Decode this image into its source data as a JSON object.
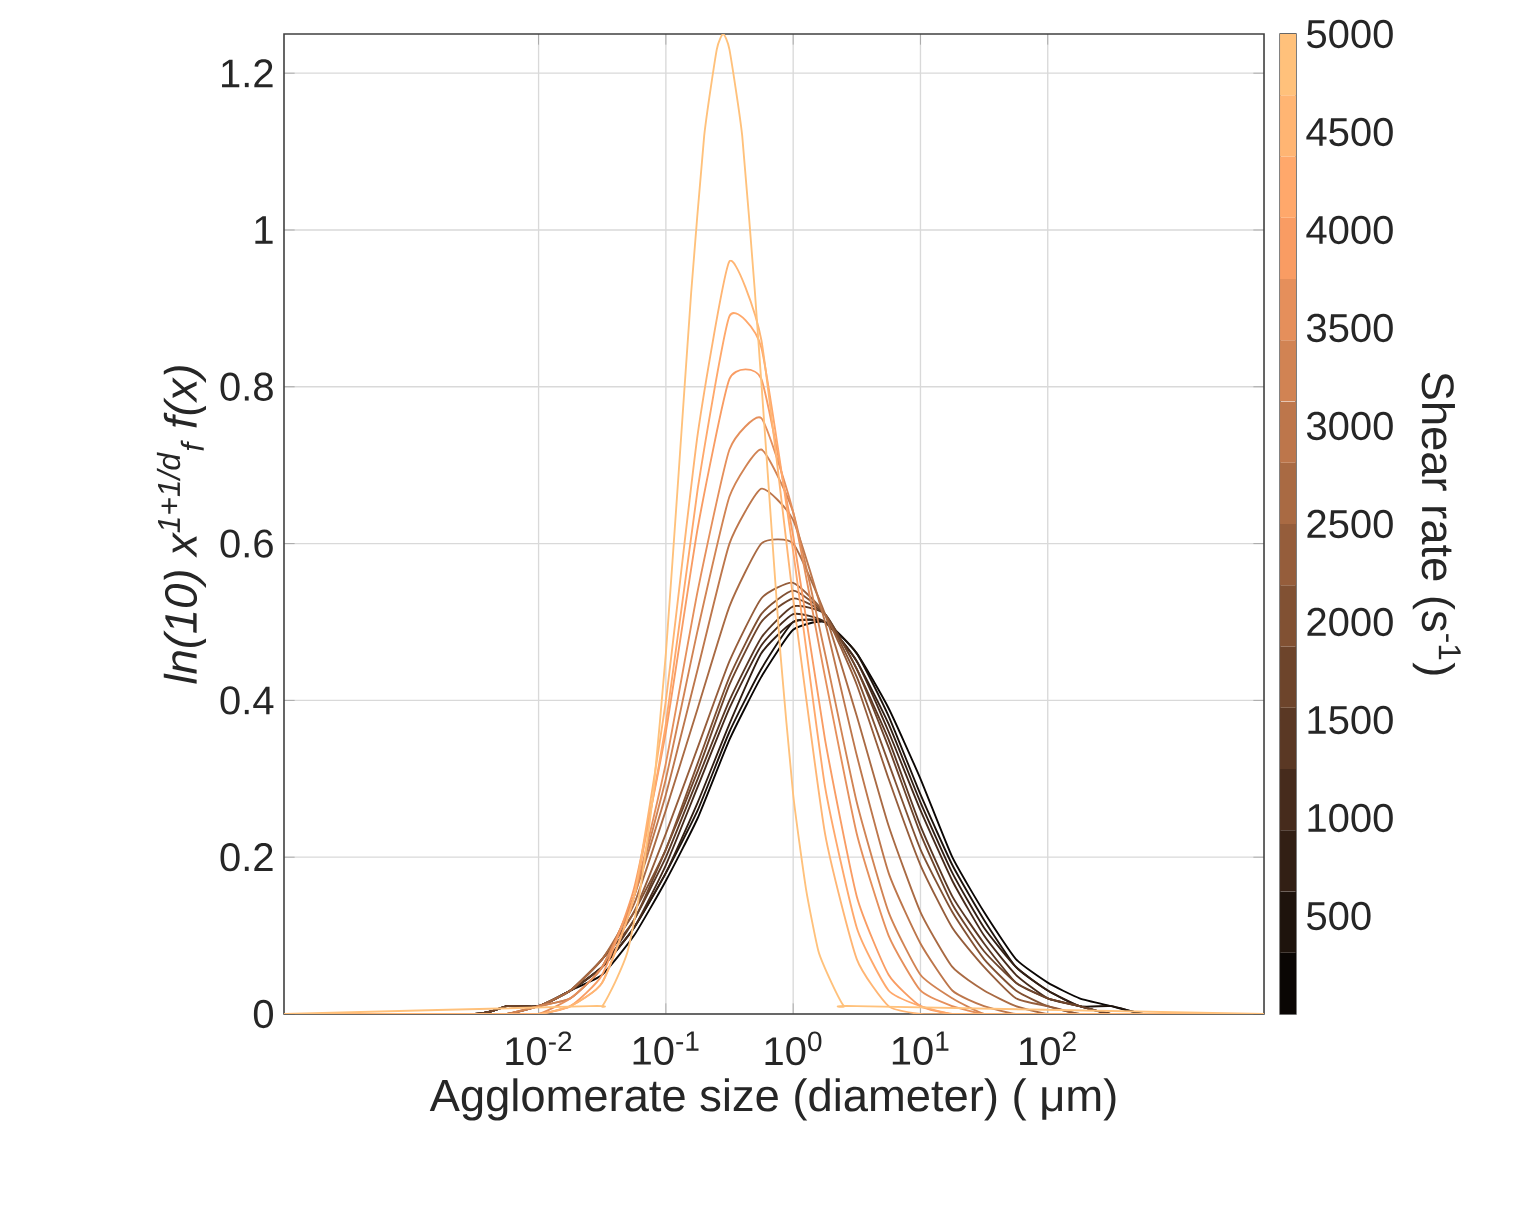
{
  "chart_data": {
    "type": "line",
    "xlabel": "Agglomerate size (diameter) ( μm)",
    "ylabel": "ln(10) x$^{1+1/d}$$_{f}$ f(x)",
    "clabel": "Shear rate (s$^{-1}$)",
    "log": "x",
    "grid": true,
    "xlim": [
      0.0001,
      5000
    ],
    "ylim": [
      0,
      1.25
    ],
    "xticks": [
      {
        "value": 0.01,
        "label": "10$^{-2}$"
      },
      {
        "value": 0.1,
        "label": "10$^{-1}$"
      },
      {
        "value": 1,
        "label": "10$^{0}$"
      },
      {
        "value": 10,
        "label": "10$^{1}$"
      },
      {
        "value": 100,
        "label": "10$^{2}$"
      }
    ],
    "yticks": [
      0,
      0.2,
      0.4,
      0.6,
      0.8,
      1,
      1.2
    ],
    "clim": [
      0,
      5000
    ],
    "cticks": [
      500,
      1000,
      1500,
      2000,
      2500,
      3000,
      3500,
      4000,
      4500,
      5000
    ],
    "x": [
      0.0001,
      0.00316,
      0.00562,
      0.01,
      0.0178,
      0.0316,
      0.0562,
      0.1,
      0.178,
      0.316,
      0.562,
      1,
      1.78,
      3.16,
      5.62,
      10,
      17.8,
      31.6,
      56.2,
      100,
      178,
      316,
      562,
      1000,
      5000
    ],
    "series": [
      {
        "color": "#0a0604",
        "values": [
          0,
          0,
          0.01,
          0.01,
          0.03,
          0.05,
          0.1,
          0.17,
          0.25,
          0.35,
          0.43,
          0.49,
          0.5,
          0.46,
          0.39,
          0.3,
          0.2,
          0.13,
          0.07,
          0.04,
          0.02,
          0.01,
          0,
          0,
          0
        ]
      },
      {
        "color": "#1e130c",
        "values": [
          0,
          0,
          0.01,
          0.01,
          0.03,
          0.06,
          0.11,
          0.18,
          0.26,
          0.36,
          0.44,
          0.5,
          0.5,
          0.46,
          0.38,
          0.28,
          0.19,
          0.12,
          0.06,
          0.03,
          0.01,
          0.01,
          0,
          0,
          0
        ]
      },
      {
        "color": "#321f14",
        "values": [
          0,
          0,
          0.01,
          0.01,
          0.03,
          0.06,
          0.11,
          0.18,
          0.27,
          0.37,
          0.46,
          0.5,
          0.5,
          0.45,
          0.37,
          0.27,
          0.18,
          0.11,
          0.06,
          0.03,
          0.01,
          0,
          0,
          0,
          0
        ]
      },
      {
        "color": "#462b1c",
        "values": [
          0,
          0,
          0.01,
          0.01,
          0.03,
          0.06,
          0.11,
          0.19,
          0.29,
          0.39,
          0.47,
          0.51,
          0.5,
          0.45,
          0.36,
          0.26,
          0.17,
          0.1,
          0.05,
          0.02,
          0.01,
          0,
          0,
          0,
          0
        ]
      },
      {
        "color": "#5a3824",
        "values": [
          0,
          0,
          0.01,
          0.01,
          0.03,
          0.06,
          0.12,
          0.2,
          0.3,
          0.4,
          0.48,
          0.52,
          0.51,
          0.44,
          0.35,
          0.24,
          0.15,
          0.09,
          0.04,
          0.02,
          0.01,
          0,
          0,
          0,
          0
        ]
      },
      {
        "color": "#6d442b",
        "values": [
          0,
          0,
          0.01,
          0.01,
          0.03,
          0.07,
          0.12,
          0.21,
          0.31,
          0.42,
          0.5,
          0.53,
          0.51,
          0.44,
          0.34,
          0.23,
          0.14,
          0.08,
          0.04,
          0.02,
          0.01,
          0,
          0,
          0,
          0
        ]
      },
      {
        "color": "#815133",
        "values": [
          0,
          0,
          0,
          0.01,
          0.03,
          0.07,
          0.13,
          0.21,
          0.32,
          0.43,
          0.51,
          0.54,
          0.51,
          0.43,
          0.32,
          0.21,
          0.13,
          0.07,
          0.03,
          0.01,
          0,
          0,
          0,
          0,
          0
        ]
      },
      {
        "color": "#955d3b",
        "values": [
          0,
          0,
          0,
          0.01,
          0.03,
          0.07,
          0.13,
          0.23,
          0.34,
          0.45,
          0.53,
          0.55,
          0.51,
          0.42,
          0.3,
          0.19,
          0.11,
          0.06,
          0.02,
          0.01,
          0,
          0,
          0,
          0,
          0
        ]
      },
      {
        "color": "#a96a43",
        "values": [
          0,
          0,
          0,
          0.01,
          0.03,
          0.07,
          0.14,
          0.26,
          0.39,
          0.52,
          0.6,
          0.6,
          0.51,
          0.38,
          0.24,
          0.13,
          0.06,
          0.03,
          0.01,
          0,
          0,
          0,
          0,
          0,
          0
        ]
      },
      {
        "color": "#bd764b",
        "values": [
          0,
          0,
          0,
          0.01,
          0.02,
          0.06,
          0.15,
          0.28,
          0.44,
          0.6,
          0.67,
          0.63,
          0.5,
          0.33,
          0.18,
          0.09,
          0.03,
          0.01,
          0,
          0,
          0,
          0,
          0,
          0,
          0
        ]
      },
      {
        "color": "#d18353",
        "values": [
          0,
          0,
          0,
          0.01,
          0.02,
          0.06,
          0.15,
          0.3,
          0.49,
          0.66,
          0.72,
          0.64,
          0.46,
          0.27,
          0.13,
          0.05,
          0.02,
          0,
          0,
          0,
          0,
          0,
          0,
          0,
          0
        ]
      },
      {
        "color": "#e58f5b",
        "values": [
          0,
          0,
          0,
          0,
          0.02,
          0.06,
          0.15,
          0.32,
          0.54,
          0.72,
          0.76,
          0.64,
          0.43,
          0.23,
          0.1,
          0.03,
          0.01,
          0,
          0,
          0,
          0,
          0,
          0,
          0,
          0
        ]
      },
      {
        "color": "#f99c63",
        "values": [
          0,
          0,
          0,
          0,
          0.01,
          0.05,
          0.16,
          0.36,
          0.62,
          0.81,
          0.81,
          0.61,
          0.35,
          0.15,
          0.05,
          0.01,
          0,
          0,
          0,
          0,
          0,
          0,
          0,
          0,
          0
        ]
      },
      {
        "color": "#ffa86b",
        "values": [
          0,
          0,
          0,
          0,
          0.01,
          0.04,
          0.15,
          0.37,
          0.67,
          0.89,
          0.85,
          0.59,
          0.29,
          0.11,
          0.03,
          0.01,
          0,
          0,
          0,
          0,
          0,
          0,
          0,
          0,
          0
        ]
      },
      {
        "color": "#ffb573",
        "values": [
          0,
          0,
          0,
          0,
          0.01,
          0.04,
          0.15,
          0.4,
          0.74,
          0.96,
          0.86,
          0.53,
          0.23,
          0.07,
          0.01,
          0,
          0,
          0,
          0,
          0,
          0,
          0,
          0,
          0,
          0
        ]
      },
      {
        "color": "#ffc17b",
        "x": [
          0.0001,
          0.0251,
          0.0316,
          0.0398,
          0.0501,
          0.0631,
          0.0794,
          0.1,
          0.126,
          0.158,
          0.2,
          0.251,
          0.282,
          0.316,
          0.398,
          0.501,
          0.631,
          0.794,
          1,
          1.26,
          1.58,
          2,
          2.51,
          3.16,
          5000
        ],
        "values": [
          0,
          0.01,
          0.01,
          0.04,
          0.08,
          0.16,
          0.28,
          0.46,
          0.69,
          0.92,
          1.12,
          1.23,
          1.25,
          1.23,
          1.12,
          0.92,
          0.69,
          0.46,
          0.28,
          0.16,
          0.08,
          0.04,
          0.01,
          0.01,
          0
        ]
      }
    ]
  }
}
